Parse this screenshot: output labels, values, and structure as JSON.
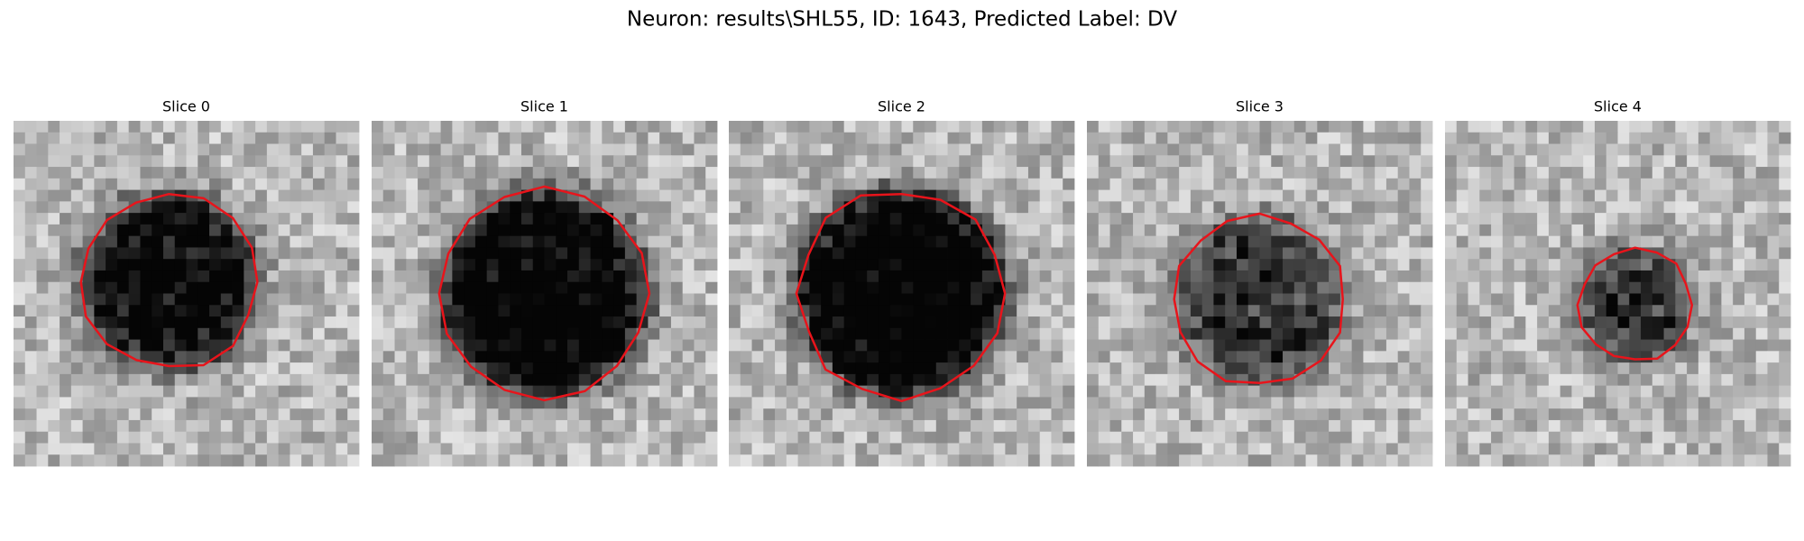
{
  "title": "Neuron: results\\SHL55, ID: 1643, Predicted Label: DV",
  "panels": [
    {
      "title": "Slice 0"
    },
    {
      "title": "Slice 1"
    },
    {
      "title": "Slice 2"
    },
    {
      "title": "Slice 3"
    },
    {
      "title": "Slice 4"
    }
  ]
}
